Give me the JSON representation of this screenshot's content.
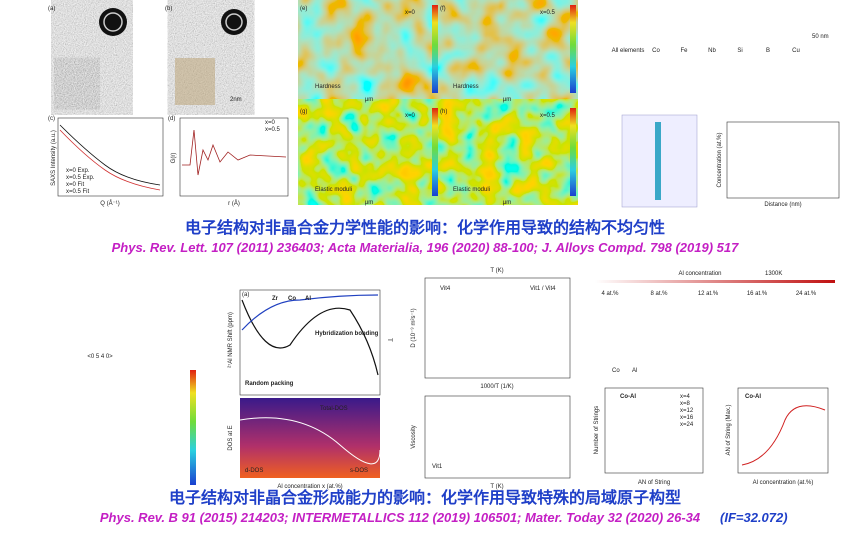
{
  "figure1": {
    "letters": [
      "(a)",
      "(b)",
      "(c)",
      "(d)",
      "(e)",
      "(f)",
      "(g)",
      "(h)"
    ],
    "texts": [
      "SAXS Intensity (a.u.)",
      "Q (Å⁻¹)",
      "x=0 Exp.",
      "x=0.5 Exp.",
      "x=0 Fit",
      "x=0.5 Fit",
      "G(r)",
      "r (Å)",
      "x=0",
      "x=0.5",
      "Hardness",
      "Elastic moduli",
      "μm",
      "All elements",
      "Co",
      "Fe",
      "Nb",
      "Si",
      "B",
      "Cu",
      "50 nm",
      "Distance (nm)",
      "Concentration (at.%)",
      "2nm"
    ],
    "caption": "电子结构对非晶合金力学性能的影响：化学作用导致的结构不均匀性",
    "citation": "Phys. Rev. Lett. 107 (2011) 236403;  Acta Materialia, 196 (2020) 88-100;  J. Alloys Compd. 798  (2019) 517"
  },
  "figure2": {
    "texts": [
      "<0 5 4 0>",
      "Zr",
      "Co",
      "Al",
      "²⁷Al NMR Shift (ppm)",
      "Random packing",
      "Hybridization bonding",
      "Total-DOS",
      "d-DOS",
      "s-DOS",
      "DOS at E",
      "Al concentration x (at.%)",
      "T",
      "T (K)",
      "D (10⁻⁹ m²s⁻¹)",
      "1000/T (1/K)",
      "Viscosity",
      "Vit1 / Vit4",
      "Al concentration",
      "1300K",
      "4 at.%",
      "8 at.%",
      "12 at.%",
      "16 at.%",
      "24 at.%",
      "Co-Al",
      "Number of Strings",
      "AN of String",
      "AN of String (Max.)",
      "Al concentration (at.%)",
      "x=4",
      "x=8",
      "x=12",
      "x=16",
      "x=24",
      "Vit1",
      "Vit4"
    ],
    "caption": "电子结构对非晶合金形成能力的影响：化学作用导致特殊的局域原子构型",
    "citation": "Phys. Rev. B 91 (2015) 214203;  INTERMETALLICS 112 (2019) 106501;  Mater. Today 32 (2020) 26-34",
    "citation_if": "(IF=32.072)"
  }
}
